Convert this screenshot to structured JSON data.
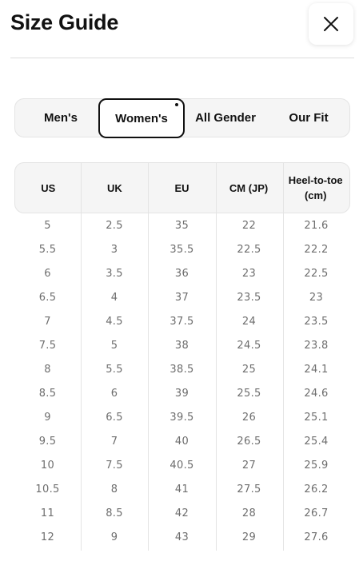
{
  "header": {
    "title": "Size Guide",
    "close_icon": "close-icon"
  },
  "tabs": [
    {
      "label": "Men's",
      "active": false
    },
    {
      "label": "Women's",
      "active": true
    },
    {
      "label": "All Gender",
      "active": false
    },
    {
      "label": "Our Fit",
      "active": false
    }
  ],
  "table": {
    "columns": [
      "US",
      "UK",
      "EU",
      "CM (JP)",
      "Heel-to-toe (cm)"
    ],
    "rows": [
      [
        "5",
        "2.5",
        "35",
        "22",
        "21.6"
      ],
      [
        "5.5",
        "3",
        "35.5",
        "22.5",
        "22.2"
      ],
      [
        "6",
        "3.5",
        "36",
        "23",
        "22.5"
      ],
      [
        "6.5",
        "4",
        "37",
        "23.5",
        "23"
      ],
      [
        "7",
        "4.5",
        "37.5",
        "24",
        "23.5"
      ],
      [
        "7.5",
        "5",
        "38",
        "24.5",
        "23.8"
      ],
      [
        "8",
        "5.5",
        "38.5",
        "25",
        "24.1"
      ],
      [
        "8.5",
        "6",
        "39",
        "25.5",
        "24.6"
      ],
      [
        "9",
        "6.5",
        "39.5",
        "26",
        "25.1"
      ],
      [
        "9.5",
        "7",
        "40",
        "26.5",
        "25.4"
      ],
      [
        "10",
        "7.5",
        "40.5",
        "27",
        "25.9"
      ],
      [
        "10.5",
        "8",
        "41",
        "27.5",
        "26.2"
      ],
      [
        "11",
        "8.5",
        "42",
        "28",
        "26.7"
      ],
      [
        "12",
        "9",
        "43",
        "29",
        "27.6"
      ]
    ]
  },
  "colors": {
    "text": "#111111",
    "muted": "#6e6e6e",
    "panel": "#f5f5f5",
    "border": "#e4e4e4"
  }
}
